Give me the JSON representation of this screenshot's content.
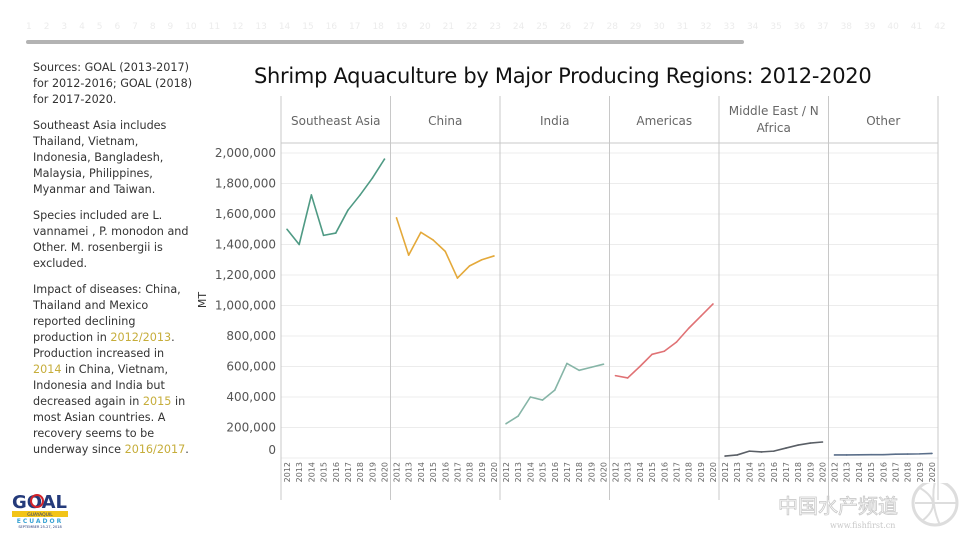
{
  "ruler": {
    "numbers": [
      "1",
      "2",
      "3",
      "4",
      "5",
      "6",
      "7",
      "8",
      "9",
      "10",
      "11",
      "12",
      "13",
      "14",
      "15",
      "16",
      "17",
      "18",
      "19",
      "20",
      "21",
      "22",
      "23",
      "24",
      "25",
      "26",
      "27",
      "28",
      "29",
      "30",
      "31",
      "32",
      "33",
      "34",
      "35",
      "36",
      "37",
      "38",
      "39",
      "40",
      "41",
      "42"
    ]
  },
  "notes": {
    "sources": "Sources: GOAL (2013-2017) for 2012-2016; GOAL (2018) for 2017-2020.",
    "southeast_asia": "Southeast Asia includes Thailand, Vietnam, Indonesia, Bangladesh, Malaysia, Philippines, Myanmar and Taiwan.",
    "species": "Species included are L. vannamei , P. monodon and Other.  M. rosenbergii is excluded.",
    "impact": {
      "p1": "Impact of diseases: China, Thailand and Mexico reported declining production in ",
      "h1": "2012/2013",
      "p2": ". Production increased in ",
      "h2": "2014",
      "p3": " in China, Vietnam, Indonesia and India but decreased again in ",
      "h3": "2015",
      "p4": " in most Asian countries.  A recovery seems to be underway since ",
      "h4": "2016/2017",
      "p5": "."
    }
  },
  "logo": {
    "text": "GOAL",
    "sub1": "GUAYAQUIL",
    "sub2": "ECUADOR",
    "sub3": "SEPTEMBER 25-27, 2018"
  },
  "watermark": {
    "text": "中国水产频道",
    "url": "www.fishfirst.cn"
  },
  "colors": {
    "grid": "#ececec",
    "divider": "#c8c8c8",
    "highlight": "#c6ad3a"
  },
  "chart_data": {
    "type": "line",
    "title": "Shrimp Aquaculture by Major Producing Regions: 2012-2020",
    "ylabel": "MT",
    "xlabel": "",
    "ylim": [
      0,
      2000000
    ],
    "yticks": [
      0,
      200000,
      400000,
      600000,
      800000,
      1000000,
      1200000,
      1400000,
      1600000,
      1800000,
      2000000
    ],
    "ytick_labels": [
      "0",
      "200,000",
      "400,000",
      "600,000",
      "800,000",
      "1,000,000",
      "1,200,000",
      "1,400,000",
      "1,600,000",
      "1,800,000",
      "2,000,000"
    ],
    "x": [
      "2012",
      "2013",
      "2014",
      "2015",
      "2016",
      "2017",
      "2018",
      "2019",
      "2020"
    ],
    "grid": true,
    "series": [
      {
        "name": "Southeast Asia",
        "header": "Southeast Asia",
        "color": "#4f9a84",
        "values": [
          1500000,
          1400000,
          1725000,
          1460000,
          1475000,
          1625000,
          1725000,
          1835000,
          1960000
        ]
      },
      {
        "name": "China",
        "header": "China",
        "color": "#e4a93a",
        "values": [
          1575000,
          1330000,
          1480000,
          1430000,
          1355000,
          1180000,
          1260000,
          1300000,
          1325000
        ]
      },
      {
        "name": "India",
        "header": "India",
        "color": "#86b5a7",
        "values": [
          225000,
          275000,
          400000,
          380000,
          445000,
          620000,
          575000,
          595000,
          615000
        ]
      },
      {
        "name": "Americas",
        "header": "Americas",
        "color": "#e07275",
        "values": [
          540000,
          525000,
          600000,
          680000,
          700000,
          760000,
          850000,
          930000,
          1010000
        ]
      },
      {
        "name": "Middle East / N Africa",
        "header": "Middle East / N Africa",
        "color": "#5a5f66",
        "values": [
          13000,
          20000,
          45000,
          40000,
          45000,
          65000,
          85000,
          98000,
          105000
        ]
      },
      {
        "name": "Other",
        "header": "Other",
        "color": "#5b6f8a",
        "values": [
          20000,
          20000,
          21000,
          22000,
          22000,
          25000,
          26000,
          27000,
          30000
        ]
      }
    ]
  }
}
